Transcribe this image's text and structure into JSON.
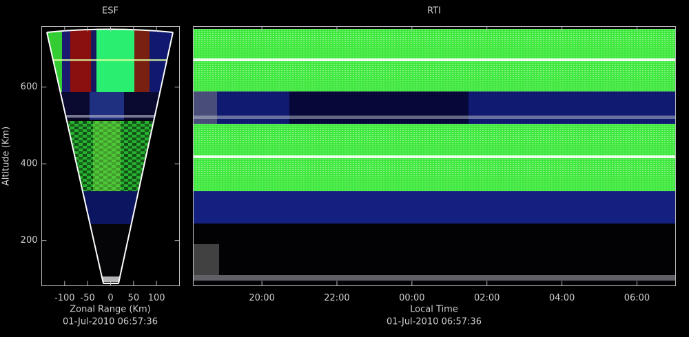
{
  "chart_data": [
    {
      "type": "fan",
      "title": "ESF",
      "subtitle": "01-Jul-2010 06:57:36",
      "x_label": "Zonal Range (Km)",
      "y_label": "Altitude (Km)",
      "xlim": [
        -150,
        150
      ],
      "xticks": [
        -100,
        -50,
        0,
        50,
        100
      ],
      "ylim": [
        82,
        758
      ],
      "yticks": [
        200,
        400,
        600
      ]
    },
    {
      "type": "heatmap",
      "title": "RTI",
      "subtitle": "01-Jul-2010 06:57:36",
      "x_label": "Local Time",
      "xlim": [
        18.17,
        31.03
      ],
      "xticks": [
        {
          "value": 20,
          "label": "20:00"
        },
        {
          "value": 22,
          "label": "22:00"
        },
        {
          "value": 24,
          "label": "00:00"
        },
        {
          "value": 26,
          "label": "02:00"
        },
        {
          "value": 28,
          "label": "04:00"
        },
        {
          "value": 30,
          "label": "06:00"
        }
      ],
      "ylim": [
        82,
        758
      ]
    }
  ]
}
